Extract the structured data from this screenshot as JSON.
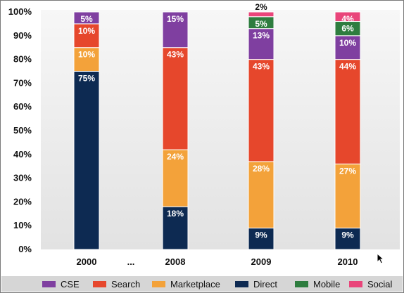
{
  "chart_data": {
    "type": "bar",
    "stacked": true,
    "categories": [
      "2000",
      "2008",
      "2009",
      "2010"
    ],
    "x_gap_label": "...",
    "y_ticks": [
      "0%",
      "10%",
      "20%",
      "30%",
      "40%",
      "50%",
      "60%",
      "70%",
      "80%",
      "90%",
      "100%"
    ],
    "ylim": [
      0,
      100
    ],
    "legend_position": "bottom",
    "series": [
      {
        "name": "Direct",
        "color": "#0d2a52",
        "values": [
          75,
          18,
          9,
          9
        ],
        "labels": [
          "75%",
          "18%",
          "9%",
          "9%"
        ]
      },
      {
        "name": "Marketplace",
        "color": "#f3a23a",
        "values": [
          10,
          24,
          28,
          27
        ],
        "labels": [
          "10%",
          "24%",
          "28%",
          "27%"
        ]
      },
      {
        "name": "Search",
        "color": "#e6472c",
        "values": [
          10,
          43,
          43,
          44
        ],
        "labels": [
          "10%",
          "43%",
          "43%",
          "44%"
        ]
      },
      {
        "name": "CSE",
        "color": "#7f3fa0",
        "values": [
          5,
          15,
          13,
          10
        ],
        "labels": [
          "5%",
          "15%",
          "13%",
          "10%"
        ]
      },
      {
        "name": "Mobile",
        "color": "#2e7d3f",
        "values": [
          0,
          0,
          5,
          6
        ],
        "labels": [
          "",
          "",
          "5%",
          "6%"
        ]
      },
      {
        "name": "Social",
        "color": "#e9457a",
        "values": [
          0,
          0,
          2,
          4
        ],
        "labels": [
          "",
          "",
          "2%",
          "4%"
        ]
      }
    ],
    "legend_order": [
      "CSE",
      "Search",
      "Marketplace",
      "Direct",
      "Mobile",
      "Social"
    ]
  }
}
